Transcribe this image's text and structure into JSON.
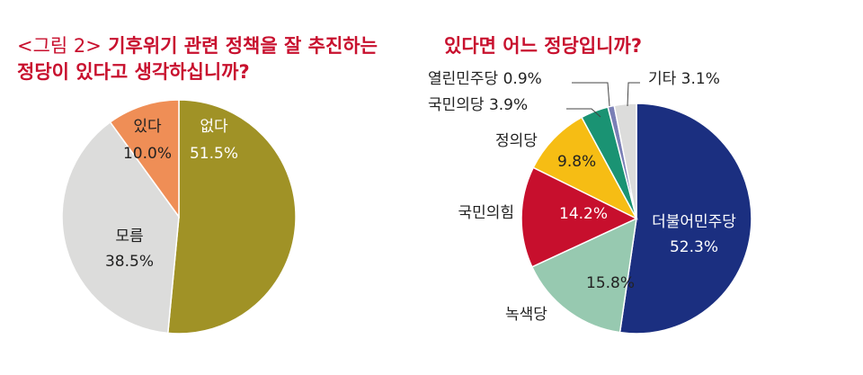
{
  "figure_caption": {
    "prefix": "<그림 2>",
    "title": "기후위기 관련 정책을 잘 추진하는\n정당이 있다고 생각하십니까?"
  },
  "right_title": "있다면 어느 정당입니까?",
  "chart_data": [
    {
      "type": "pie",
      "title": "<그림 2> 기후위기 관련 정책을 잘 추진하는 정당이 있다고 생각하십니까?",
      "unit": "%",
      "slices": [
        {
          "label": "없다",
          "value": 51.5,
          "value_label": "51.5%",
          "color": "#a09226"
        },
        {
          "label": "모름",
          "value": 38.5,
          "value_label": "38.5%",
          "color": "#dcdcdb"
        },
        {
          "label": "있다",
          "value": 10.0,
          "value_label": "10.0%",
          "color": "#ef8e56"
        }
      ]
    },
    {
      "type": "pie",
      "title": "있다면 어느 정당입니까?",
      "unit": "%",
      "slices": [
        {
          "label": "더불어민주당",
          "value": 52.3,
          "value_label": "52.3%",
          "color": "#1b2f80"
        },
        {
          "label": "녹색당",
          "value": 15.8,
          "value_label": "15.8%",
          "color": "#97c9b0"
        },
        {
          "label": "국민의힘",
          "value": 14.2,
          "value_label": "14.2%",
          "color": "#c70f2d"
        },
        {
          "label": "정의당",
          "value": 9.8,
          "value_label": "9.8%",
          "color": "#f6bd14"
        },
        {
          "label": "국민의당",
          "value": 3.9,
          "value_label": "3.9%",
          "color": "#1a9373"
        },
        {
          "label": "열린민주당",
          "value": 0.9,
          "value_label": "0.9%",
          "color": "#7a7fb6"
        },
        {
          "label": "기타",
          "value": 3.1,
          "value_label": "3.1%",
          "color": "#dcdcdb"
        }
      ]
    }
  ]
}
